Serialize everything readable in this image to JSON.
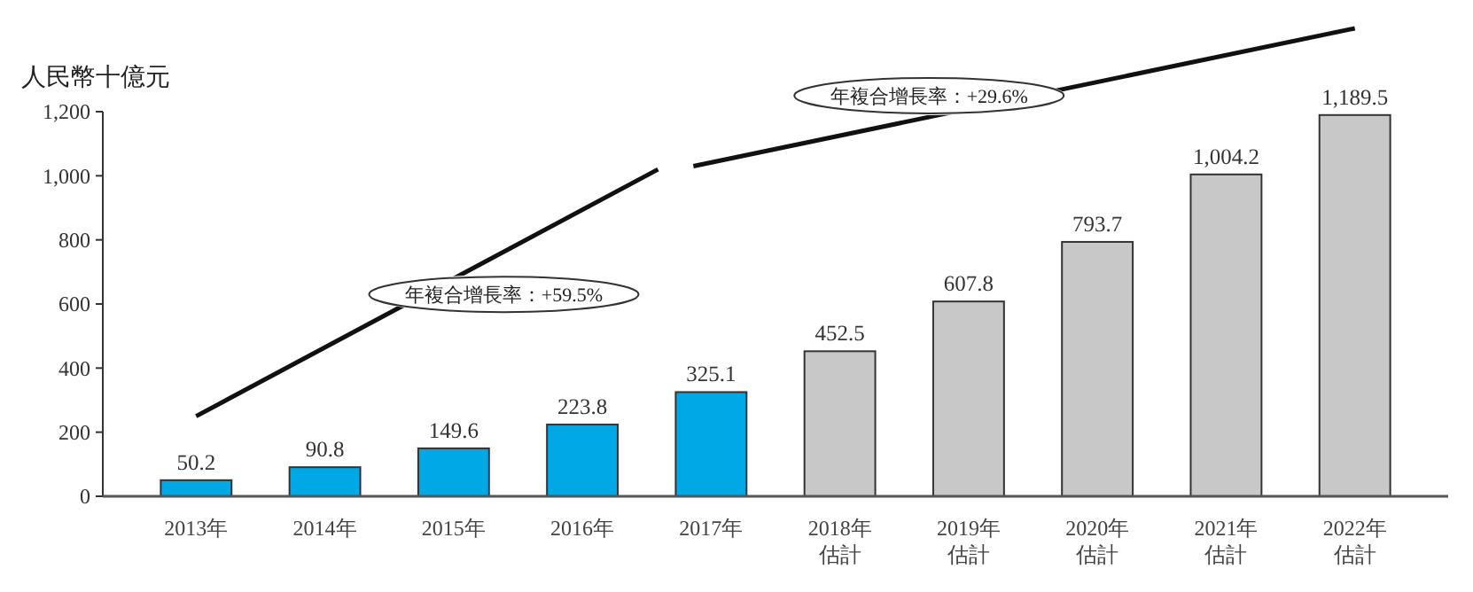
{
  "chart_data": {
    "type": "bar",
    "ylabel": "人民幣十億元",
    "categories": [
      "2013年",
      "2014年",
      "2015年",
      "2016年",
      "2017年",
      "2018年估計",
      "2019年估計",
      "2020年估計",
      "2021年估計",
      "2022年估計"
    ],
    "values": [
      50.2,
      90.8,
      149.6,
      223.8,
      325.1,
      452.5,
      607.8,
      793.7,
      1004.2,
      1189.5
    ],
    "colors": [
      "#00a9e6",
      "#00a9e6",
      "#00a9e6",
      "#00a9e6",
      "#00a9e6",
      "#c8c8c8",
      "#c8c8c8",
      "#c8c8c8",
      "#c8c8c8",
      "#c8c8c8"
    ],
    "value_labels": [
      "50.2",
      "90.8",
      "149.6",
      "223.8",
      "325.1",
      "452.5",
      "607.8",
      "793.7",
      "1,004.2",
      "1,189.5"
    ],
    "ylim": [
      0,
      1200
    ],
    "yticks": [
      0,
      200,
      400,
      600,
      800,
      {
        "value": 1000,
        "label": "1,000"
      },
      {
        "value": 1200,
        "label": "1,200"
      }
    ],
    "annotations": [
      "年複合增長率：+59.5%",
      "年複合增長率：+29.6%"
    ],
    "grid": false
  }
}
